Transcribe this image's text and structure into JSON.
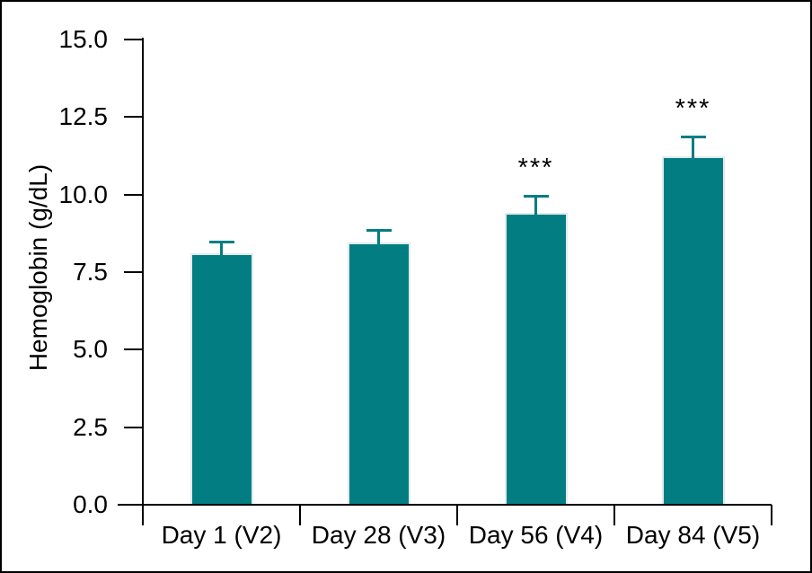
{
  "figure": {
    "background_color": "#ffffff",
    "border_color": "#000000"
  },
  "chart_data": {
    "type": "bar",
    "title": "",
    "xlabel": "",
    "ylabel": "Hemoglobin (g/dL)",
    "categories": [
      "Day 1 (V2)",
      "Day 28 (V3)",
      "Day 56 (V4)",
      "Day 84 (V5)"
    ],
    "values": [
      8.1,
      8.45,
      9.4,
      11.25
    ],
    "errors_upper": [
      0.4,
      0.45,
      0.6,
      0.65
    ],
    "significance_labels": [
      "",
      "",
      "***",
      "***"
    ],
    "ylim": [
      0,
      15
    ],
    "yticks": [
      0,
      2.5,
      5,
      7.5,
      10,
      12.5,
      15
    ],
    "ytick_labels": [
      "0.0",
      "2.5",
      "5.0",
      "7.5",
      "10.0",
      "12.5",
      "15.0"
    ],
    "grid": false,
    "legend": false,
    "bar_color": "#027E82",
    "bar_edge_color": "#e3eaeb",
    "error_bar_color": "#027E82",
    "axis_color": "#000000",
    "text_color": "#000000"
  }
}
